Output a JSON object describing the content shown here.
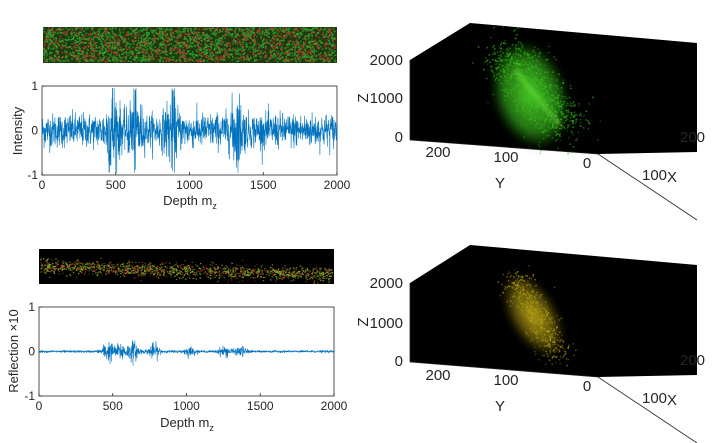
{
  "colors": {
    "signal": "#0072BD",
    "speckle_green": "#2ea32e",
    "speckle_red": "#c0392b",
    "volume_green": "#35c21a",
    "volume_yellow": "#b5a312",
    "volume_bg": "#000000"
  },
  "chart_data": [
    {
      "type": "line",
      "id": "intensity",
      "title": "",
      "xlabel": "Depth m",
      "xlabel_sub": "z",
      "ylabel": "Intensity",
      "xlim": [
        0,
        2000
      ],
      "ylim": [
        -1,
        1
      ],
      "xticks": [
        "0",
        "500",
        "1000",
        "1500",
        "2000"
      ],
      "yticks": [
        "-1",
        "0",
        "1"
      ],
      "series": [
        {
          "description": "dense noisy signal, amplitude ~0.3-0.5, burst near 480 reaching ~0.8",
          "amplitude": 0.32,
          "bursts": [
            [
              480,
              0.8
            ],
            [
              630,
              0.6
            ],
            [
              880,
              0.5
            ],
            [
              1320,
              0.5
            ]
          ]
        }
      ]
    },
    {
      "type": "line",
      "id": "reflection",
      "title": "",
      "xlabel": "Depth m",
      "xlabel_sub": "z",
      "ylabel": "Reflection ×10",
      "xlim": [
        0,
        2000
      ],
      "ylim": [
        -1,
        1
      ],
      "xticks": [
        "0",
        "500",
        "1000",
        "1500",
        "2000"
      ],
      "yticks": [
        "-1",
        "0",
        "1"
      ],
      "series": [
        {
          "description": "sparse reflection bursts, amplitude ~0.1-0.2 between depth 400 and 1500",
          "amplitude": 0.02,
          "bursts": [
            [
              470,
              0.2
            ],
            [
              560,
              0.16
            ],
            [
              640,
              0.18
            ],
            [
              780,
              0.14
            ],
            [
              1020,
              0.08
            ],
            [
              1260,
              0.1
            ],
            [
              1370,
              0.09
            ]
          ]
        }
      ]
    },
    {
      "type": "volume3d",
      "id": "volume-green",
      "zlabel": "Z",
      "ylabel": "Y",
      "xlabel": "X",
      "zticks": [
        "0",
        "1000",
        "2000"
      ],
      "yticks": [
        "200",
        "100",
        "0"
      ],
      "xticks": [
        "100",
        "200"
      ]
    },
    {
      "type": "volume3d",
      "id": "volume-yellow",
      "zlabel": "Z",
      "ylabel": "Y",
      "xlabel": "X",
      "zticks": [
        "0",
        "1000",
        "2000"
      ],
      "yticks": [
        "200",
        "100",
        "0"
      ],
      "xticks": [
        "100",
        "200"
      ]
    }
  ]
}
